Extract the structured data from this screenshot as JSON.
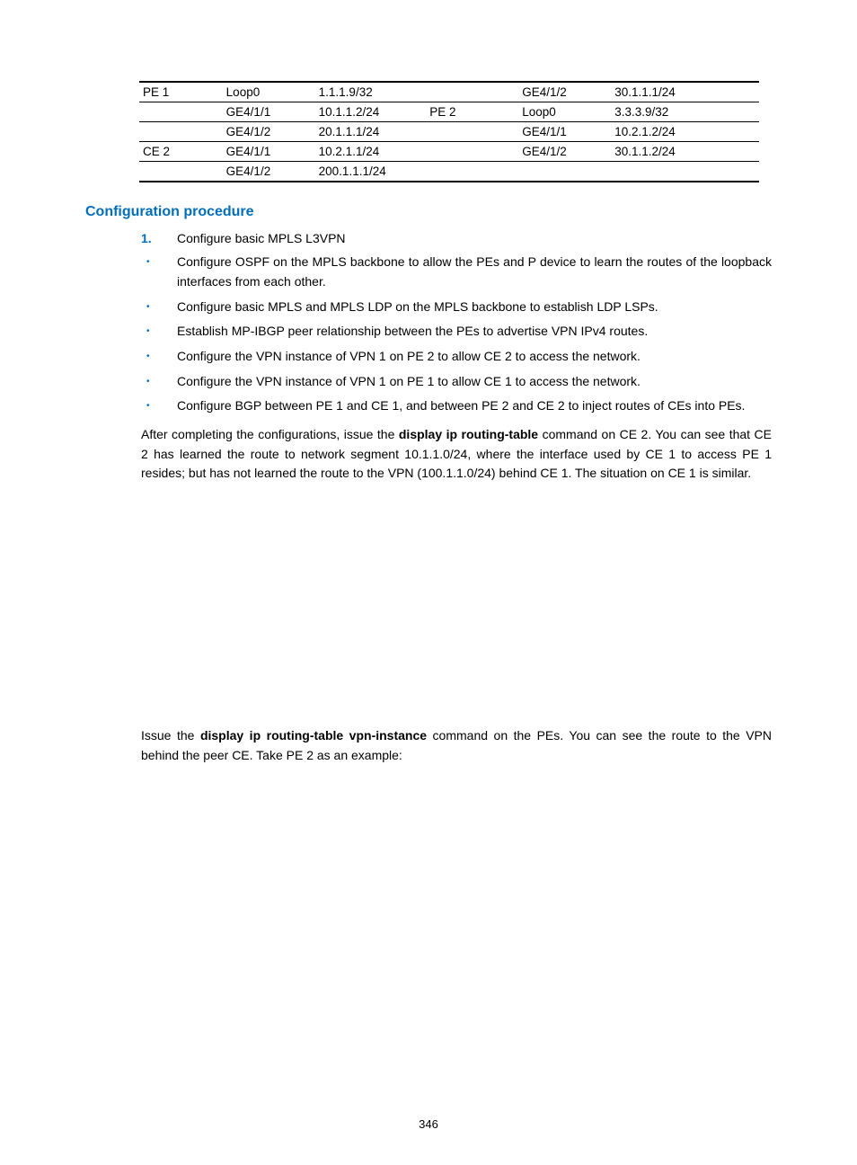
{
  "table": {
    "rows": [
      {
        "dev": "PE 1",
        "if": "Loop0",
        "ip": "1.1.1.9/32",
        "dev2": "",
        "if2": "GE4/1/2",
        "ip2": "30.1.1.1/24",
        "top": true,
        "sep": true
      },
      {
        "dev": "",
        "if": "GE4/1/1",
        "ip": "10.1.1.2/24",
        "dev2": "PE 2",
        "if2": "Loop0",
        "ip2": "3.3.3.9/32",
        "sep": true
      },
      {
        "dev": "",
        "if": "GE4/1/2",
        "ip": "20.1.1.1/24",
        "dev2": "",
        "if2": "GE4/1/1",
        "ip2": "10.2.1.2/24",
        "sep": true
      },
      {
        "dev": "CE 2",
        "if": "GE4/1/1",
        "ip": "10.2.1.1/24",
        "dev2": "",
        "if2": "GE4/1/2",
        "ip2": "30.1.1.2/24",
        "sep": true
      },
      {
        "dev": "",
        "if": "GE4/1/2",
        "ip": "200.1.1.1/24",
        "dev2": "",
        "if2": "",
        "ip2": "",
        "bottom": true
      }
    ]
  },
  "section_heading": "Configuration procedure",
  "step_num": "1.",
  "step_text": "Configure basic MPLS L3VPN",
  "bullets": [
    "Configure OSPF on the MPLS backbone to allow the PEs and P device to learn the routes of the loopback interfaces from each other.",
    "Configure basic MPLS and MPLS LDP on the MPLS backbone to establish LDP LSPs.",
    "Establish MP-IBGP peer relationship between the PEs to advertise VPN IPv4 routes.",
    "Configure the VPN instance of VPN 1 on PE 2 to allow CE 2 to access the network.",
    "Configure the VPN instance of VPN 1 on PE 1 to allow CE 1 to access the network.",
    "Configure BGP between PE 1 and CE 1, and between PE 2 and CE 2 to inject routes of CEs into PEs."
  ],
  "para1_pre": "After completing the configurations, issue the ",
  "para1_cmd": "display ip routing-table",
  "para1_post": " command on CE 2. You can see that CE 2 has learned the route to network segment 10.1.1.0/24, where the interface used by CE 1 to access PE 1 resides; but has not learned the route to the VPN (100.1.1.0/24) behind CE 1. The situation on CE 1 is similar.",
  "para2_pre": "Issue the ",
  "para2_cmd": "display ip routing-table vpn-instance",
  "para2_post": " command on the PEs. You can see the route to the VPN behind the peer CE. Take PE 2 as an example:",
  "page_number": "346"
}
